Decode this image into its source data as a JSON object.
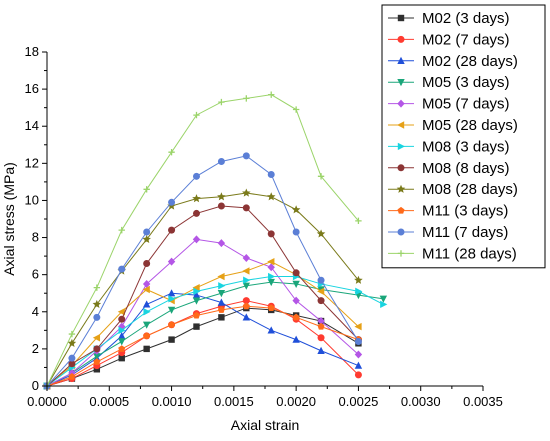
{
  "chart_data": {
    "type": "line",
    "xlabel": "Axial strain",
    "ylabel": "Axial stress (MPa)",
    "xlim": [
      0,
      0.0035
    ],
    "ylim": [
      0,
      18
    ],
    "x_ticks": [
      "0.0000",
      "0.0005",
      "0.0010",
      "0.0015",
      "0.0020",
      "0.0025",
      "0.0030",
      "0.0035"
    ],
    "y_ticks": [
      "0",
      "2",
      "4",
      "6",
      "8",
      "10",
      "12",
      "14",
      "16",
      "18"
    ],
    "legend_position": "top-right",
    "series": [
      {
        "name": "M02 (3 days)",
        "color": "#2f2f2f",
        "marker": "square",
        "points": [
          [
            0,
            0
          ],
          [
            0.0002,
            0.4
          ],
          [
            0.0004,
            0.9
          ],
          [
            0.0006,
            1.5
          ],
          [
            0.0008,
            2.0
          ],
          [
            0.001,
            2.5
          ],
          [
            0.0012,
            3.2
          ],
          [
            0.0014,
            3.7
          ],
          [
            0.0016,
            4.2
          ],
          [
            0.0018,
            4.1
          ],
          [
            0.002,
            3.8
          ],
          [
            0.0022,
            3.5
          ],
          [
            0.0025,
            2.3
          ]
        ]
      },
      {
        "name": "M02 (7 days)",
        "color": "#ff3b30",
        "marker": "circle",
        "points": [
          [
            0,
            0
          ],
          [
            0.0002,
            0.4
          ],
          [
            0.0004,
            1.1
          ],
          [
            0.0006,
            1.8
          ],
          [
            0.0008,
            2.7
          ],
          [
            0.001,
            3.3
          ],
          [
            0.0012,
            3.9
          ],
          [
            0.0014,
            4.3
          ],
          [
            0.0016,
            4.6
          ],
          [
            0.0018,
            4.3
          ],
          [
            0.002,
            3.6
          ],
          [
            0.0022,
            2.6
          ],
          [
            0.0025,
            0.6
          ]
        ]
      },
      {
        "name": "M02 (28 days)",
        "color": "#1f4fd9",
        "marker": "triangle-up",
        "points": [
          [
            0,
            0
          ],
          [
            0.0002,
            0.6
          ],
          [
            0.0004,
            1.5
          ],
          [
            0.0006,
            2.7
          ],
          [
            0.0008,
            4.4
          ],
          [
            0.001,
            5.0
          ],
          [
            0.0012,
            4.9
          ],
          [
            0.0014,
            4.5
          ],
          [
            0.0016,
            3.7
          ],
          [
            0.0018,
            3.0
          ],
          [
            0.002,
            2.5
          ],
          [
            0.0022,
            1.9
          ],
          [
            0.0025,
            1.1
          ]
        ]
      },
      {
        "name": "M05 (3 days)",
        "color": "#1aa67a",
        "marker": "triangle-down",
        "points": [
          [
            0,
            0
          ],
          [
            0.0002,
            0.7
          ],
          [
            0.0004,
            1.6
          ],
          [
            0.0006,
            2.4
          ],
          [
            0.0008,
            3.3
          ],
          [
            0.001,
            4.1
          ],
          [
            0.0012,
            4.6
          ],
          [
            0.0014,
            5.0
          ],
          [
            0.0016,
            5.4
          ],
          [
            0.0018,
            5.6
          ],
          [
            0.002,
            5.5
          ],
          [
            0.0022,
            5.2
          ],
          [
            0.0025,
            4.9
          ],
          [
            0.0027,
            4.7
          ]
        ]
      },
      {
        "name": "M05 (7 days)",
        "color": "#b456e6",
        "marker": "diamond",
        "points": [
          [
            0,
            0
          ],
          [
            0.0002,
            0.7
          ],
          [
            0.0004,
            1.9
          ],
          [
            0.0006,
            3.2
          ],
          [
            0.0008,
            5.5
          ],
          [
            0.001,
            6.7
          ],
          [
            0.0012,
            7.9
          ],
          [
            0.0014,
            7.7
          ],
          [
            0.0016,
            6.9
          ],
          [
            0.0018,
            6.4
          ],
          [
            0.002,
            4.6
          ],
          [
            0.0022,
            3.5
          ],
          [
            0.0025,
            1.7
          ]
        ]
      },
      {
        "name": "M05 (28 days)",
        "color": "#e6a117",
        "marker": "triangle-left",
        "points": [
          [
            0,
            0
          ],
          [
            0.0002,
            1.1
          ],
          [
            0.0004,
            2.6
          ],
          [
            0.0006,
            4.0
          ],
          [
            0.0008,
            5.2
          ],
          [
            0.001,
            4.6
          ],
          [
            0.0012,
            5.3
          ],
          [
            0.0014,
            5.9
          ],
          [
            0.0016,
            6.2
          ],
          [
            0.0018,
            6.7
          ],
          [
            0.002,
            6.0
          ],
          [
            0.0022,
            5.1
          ],
          [
            0.0025,
            3.2
          ]
        ]
      },
      {
        "name": "M08 (3 days)",
        "color": "#19d4e0",
        "marker": "triangle-right",
        "points": [
          [
            0,
            0
          ],
          [
            0.0002,
            1.0
          ],
          [
            0.0004,
            2.0
          ],
          [
            0.0006,
            3.0
          ],
          [
            0.0008,
            4.0
          ],
          [
            0.001,
            4.7
          ],
          [
            0.0012,
            5.1
          ],
          [
            0.0014,
            5.4
          ],
          [
            0.0016,
            5.7
          ],
          [
            0.0018,
            5.9
          ],
          [
            0.002,
            5.9
          ],
          [
            0.0022,
            5.5
          ],
          [
            0.0025,
            5.1
          ],
          [
            0.0027,
            4.4
          ]
        ]
      },
      {
        "name": "M08 (8 days)",
        "color": "#8c3535",
        "marker": "circle",
        "points": [
          [
            0,
            0
          ],
          [
            0.0002,
            1.2
          ],
          [
            0.0004,
            2.0
          ],
          [
            0.0006,
            3.6
          ],
          [
            0.0008,
            6.6
          ],
          [
            0.001,
            8.4
          ],
          [
            0.0012,
            9.3
          ],
          [
            0.0014,
            9.7
          ],
          [
            0.0016,
            9.6
          ],
          [
            0.0018,
            8.2
          ],
          [
            0.002,
            6.1
          ],
          [
            0.0022,
            4.6
          ],
          [
            0.0025,
            2.5
          ]
        ]
      },
      {
        "name": "M08 (28 days)",
        "color": "#7a7a1a",
        "marker": "star",
        "points": [
          [
            0,
            0
          ],
          [
            0.0002,
            2.3
          ],
          [
            0.0004,
            4.4
          ],
          [
            0.0006,
            6.2
          ],
          [
            0.0008,
            7.9
          ],
          [
            0.001,
            9.7
          ],
          [
            0.0012,
            10.1
          ],
          [
            0.0014,
            10.2
          ],
          [
            0.0016,
            10.4
          ],
          [
            0.0018,
            10.2
          ],
          [
            0.002,
            9.5
          ],
          [
            0.0022,
            8.2
          ],
          [
            0.0025,
            5.7
          ]
        ]
      },
      {
        "name": "M11 (3 days)",
        "color": "#ff6a1a",
        "marker": "pentagon",
        "points": [
          [
            0,
            0
          ],
          [
            0.0002,
            0.5
          ],
          [
            0.0004,
            1.3
          ],
          [
            0.0006,
            2.0
          ],
          [
            0.0008,
            2.7
          ],
          [
            0.001,
            3.3
          ],
          [
            0.0012,
            3.8
          ],
          [
            0.0014,
            4.1
          ],
          [
            0.0016,
            4.3
          ],
          [
            0.0018,
            4.2
          ],
          [
            0.002,
            3.7
          ],
          [
            0.0022,
            3.2
          ],
          [
            0.0025,
            2.5
          ]
        ]
      },
      {
        "name": "M11 (7 days)",
        "color": "#5b7fd6",
        "marker": "circle",
        "points": [
          [
            0,
            0
          ],
          [
            0.0002,
            1.5
          ],
          [
            0.0004,
            3.7
          ],
          [
            0.0006,
            6.3
          ],
          [
            0.0008,
            8.3
          ],
          [
            0.001,
            9.9
          ],
          [
            0.0012,
            11.3
          ],
          [
            0.0014,
            12.1
          ],
          [
            0.0016,
            12.4
          ],
          [
            0.0018,
            11.4
          ],
          [
            0.002,
            8.3
          ],
          [
            0.0022,
            5.7
          ],
          [
            0.0025,
            2.4
          ]
        ]
      },
      {
        "name": "M11 (28 days)",
        "color": "#9bd46a",
        "marker": "plus",
        "points": [
          [
            0,
            0
          ],
          [
            0.0002,
            2.8
          ],
          [
            0.0004,
            5.3
          ],
          [
            0.0006,
            8.4
          ],
          [
            0.0008,
            10.6
          ],
          [
            0.001,
            12.6
          ],
          [
            0.0012,
            14.6
          ],
          [
            0.0014,
            15.3
          ],
          [
            0.0016,
            15.5
          ],
          [
            0.0018,
            15.7
          ],
          [
            0.002,
            14.9
          ],
          [
            0.0022,
            11.3
          ],
          [
            0.0025,
            8.9
          ]
        ]
      }
    ]
  }
}
